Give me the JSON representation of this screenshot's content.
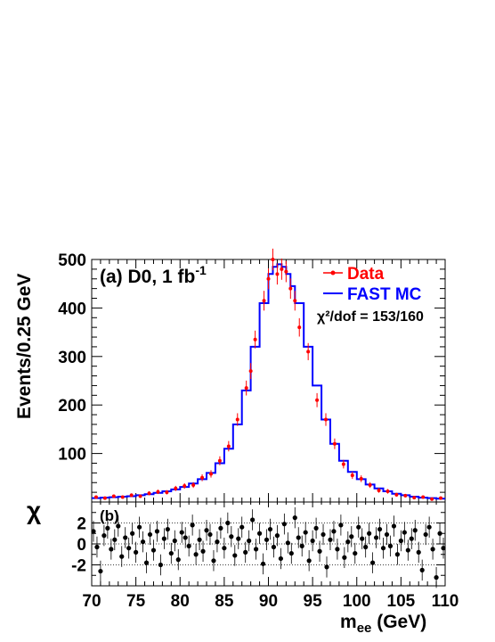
{
  "chart_data": [
    {
      "panel": "(a)",
      "type": "line",
      "title": "",
      "annotation": {
        "text": "(a) D0, 1 fb",
        "superscript": "-1"
      },
      "xlabel": "",
      "ylabel": "Events/0.25 GeV",
      "xlim": [
        70,
        110
      ],
      "ylim": [
        0,
        500
      ],
      "yticks": [
        100,
        200,
        300,
        400,
        500
      ],
      "legend": {
        "placement": "top-right",
        "entries": [
          {
            "label": "Data",
            "color": "#ff0000",
            "style": "points-with-errors"
          },
          {
            "label": "FAST MC",
            "color": "#0000ff",
            "style": "step-line"
          }
        ],
        "fit_text": "χ²/dof = 153/160"
      },
      "series": [
        {
          "name": "FAST MC",
          "color": "#0000ff",
          "x": [
            70,
            71,
            72,
            73,
            74,
            75,
            76,
            77,
            78,
            79,
            80,
            81,
            82,
            83,
            84,
            85,
            86,
            87,
            88,
            89,
            90,
            90.5,
            91,
            91.5,
            92,
            92.5,
            93,
            94,
            95,
            96,
            97,
            98,
            99,
            100,
            101,
            102,
            103,
            104,
            105,
            106,
            107,
            108,
            109,
            110
          ],
          "y": [
            8,
            9,
            10,
            11,
            12,
            14,
            16,
            19,
            22,
            26,
            31,
            38,
            47,
            60,
            80,
            110,
            160,
            230,
            320,
            410,
            470,
            485,
            490,
            485,
            470,
            445,
            410,
            320,
            240,
            170,
            120,
            85,
            62,
            47,
            36,
            28,
            22,
            17,
            14,
            11,
            9,
            8,
            7,
            6
          ]
        },
        {
          "name": "Data",
          "color": "#ff0000",
          "x": [
            70.5,
            71.5,
            72.5,
            73.5,
            74.5,
            75.5,
            76.5,
            77.5,
            78.5,
            79.5,
            80.5,
            81.5,
            82.5,
            83.5,
            84.5,
            85.5,
            86.5,
            87.5,
            88,
            88.5,
            89.5,
            90,
            90.5,
            91,
            91.5,
            92,
            92.5,
            93,
            93.5,
            94.5,
            95.5,
            96.5,
            97.5,
            98.5,
            99.5,
            100.5,
            101.5,
            102.5,
            103.5,
            104.5,
            105.5,
            106.5,
            107.5,
            108.5,
            109.5
          ],
          "y": [
            10,
            8,
            12,
            10,
            14,
            12,
            18,
            21,
            20,
            28,
            33,
            35,
            50,
            58,
            85,
            115,
            170,
            235,
            270,
            335,
            415,
            460,
            500,
            470,
            480,
            475,
            440,
            415,
            360,
            310,
            210,
            170,
            120,
            78,
            55,
            48,
            35,
            24,
            22,
            15,
            13,
            9,
            10,
            6,
            8
          ]
        }
      ]
    },
    {
      "panel": "(b)",
      "type": "scatter",
      "title": "",
      "annotation": {
        "text": "(b)"
      },
      "xlabel": "m",
      "xlabel_sub": "ee",
      "xlabel_unit": " (GeV)",
      "ylabel": "χ",
      "xlim": [
        70,
        110
      ],
      "ylim": [
        -4,
        4
      ],
      "xticks": [
        70,
        75,
        80,
        85,
        90,
        95,
        100,
        105,
        110
      ],
      "yticks": [
        -2,
        0,
        2
      ],
      "reference_lines": [
        2,
        0,
        -2
      ],
      "series": [
        {
          "name": "χ",
          "color": "#000000",
          "x": [
            70.2,
            70.6,
            71.0,
            71.4,
            71.8,
            72.2,
            72.6,
            73.0,
            73.4,
            73.8,
            74.2,
            74.6,
            75.0,
            75.4,
            75.8,
            76.2,
            76.6,
            77.0,
            77.4,
            77.8,
            78.2,
            78.6,
            79.0,
            79.4,
            79.8,
            80.2,
            80.6,
            81.0,
            81.4,
            81.8,
            82.2,
            82.6,
            83.0,
            83.4,
            83.8,
            84.2,
            84.6,
            85.0,
            85.4,
            85.8,
            86.2,
            86.6,
            87.0,
            87.4,
            87.8,
            88.2,
            88.6,
            89.0,
            89.4,
            89.8,
            90.2,
            90.6,
            91.0,
            91.4,
            91.8,
            92.2,
            92.6,
            93.0,
            93.4,
            93.8,
            94.2,
            94.6,
            95.0,
            95.4,
            95.8,
            96.2,
            96.6,
            97.0,
            97.4,
            97.8,
            98.2,
            98.6,
            99.0,
            99.4,
            99.8,
            100.2,
            100.6,
            101.0,
            101.4,
            101.8,
            102.2,
            102.6,
            103.0,
            103.4,
            103.8,
            104.2,
            104.6,
            105.0,
            105.4,
            105.8,
            106.2,
            106.6,
            107.0,
            107.4,
            107.8,
            108.2,
            108.6,
            109.0,
            109.4,
            109.8
          ],
          "y": [
            1.2,
            -0.3,
            -2.6,
            0.8,
            1.5,
            -0.5,
            0.4,
            1.7,
            -1.2,
            0.6,
            -0.4,
            1.0,
            -0.8,
            1.6,
            0.2,
            -1.8,
            0.9,
            -0.6,
            1.2,
            -2.0,
            0.5,
            1.4,
            -0.9,
            0.3,
            -1.5,
            1.1,
            0.6,
            -0.2,
            1.8,
            -1.0,
            0.4,
            -0.7,
            1.3,
            0.9,
            -1.6,
            0.2,
            1.5,
            -0.4,
            2.0,
            0.7,
            -1.1,
            0.5,
            1.6,
            -0.8,
            0.3,
            2.3,
            -0.5,
            1.0,
            -1.9,
            0.4,
            1.4,
            -0.3,
            0.8,
            -1.4,
            1.9,
            0.1,
            -0.9,
            2.5,
            0.6,
            -0.2,
            1.1,
            -1.6,
            0.3,
            1.5,
            -0.7,
            0.9,
            -2.2,
            0.4,
            1.2,
            -0.5,
            1.8,
            -1.3,
            0.2,
            0.7,
            -0.9,
            1.6,
            0.5,
            -0.3,
            1.0,
            -1.8,
            0.6,
            1.4,
            -0.4,
            0.9,
            -0.2,
            1.7,
            -1.0,
            0.3,
            1.1,
            -0.6,
            0.5,
            1.3,
            -0.8,
            -2.5,
            0.9,
            1.6,
            -0.5,
            -3.2,
            1.0,
            -0.4
          ]
        }
      ]
    }
  ]
}
